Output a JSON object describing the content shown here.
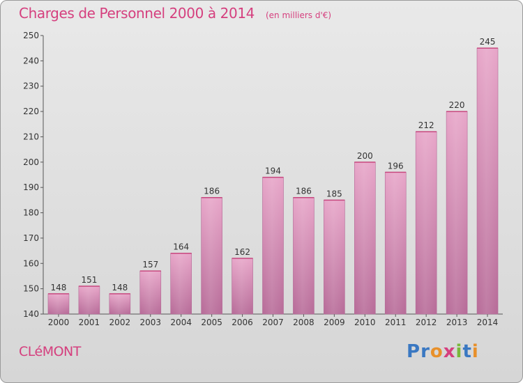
{
  "title": "Charges de Personnel 2000 à 2014",
  "subtitle": "(en milliers d'€)",
  "place": "CLéMONT",
  "logo": {
    "text": "Proxiti",
    "letter_colors": [
      "#3a78c2",
      "#3a78c2",
      "#e8902a",
      "#d53f7e",
      "#7ab83a",
      "#3a78c2",
      "#e8902a"
    ]
  },
  "chart_data": {
    "type": "bar",
    "categories": [
      "2000",
      "2001",
      "2002",
      "2003",
      "2004",
      "2005",
      "2006",
      "2007",
      "2008",
      "2009",
      "2010",
      "2011",
      "2012",
      "2013",
      "2014"
    ],
    "values": [
      148,
      151,
      148,
      157,
      164,
      186,
      162,
      194,
      186,
      185,
      200,
      196,
      212,
      220,
      245
    ],
    "ylim": [
      140,
      250
    ],
    "yticks": [
      140,
      150,
      160,
      170,
      180,
      190,
      200,
      210,
      220,
      230,
      240,
      250
    ],
    "bar_color": "#c9669e",
    "grid": false,
    "data_labels": true
  }
}
